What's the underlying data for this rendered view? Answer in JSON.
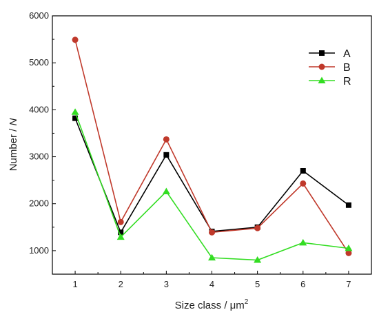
{
  "chart_data": {
    "type": "line",
    "x": [
      1,
      2,
      3,
      4,
      5,
      6,
      7
    ],
    "series": [
      {
        "name": "A",
        "color": "#000000",
        "marker": "square",
        "values": [
          3820,
          1390,
          3040,
          1410,
          1500,
          2700,
          1970
        ]
      },
      {
        "name": "B",
        "color": "#c0392b",
        "marker": "circle",
        "values": [
          5490,
          1610,
          3370,
          1390,
          1480,
          2430,
          950
        ]
      },
      {
        "name": "R",
        "color": "#33dd22",
        "marker": "triangle",
        "values": [
          3950,
          1290,
          2260,
          850,
          800,
          1170,
          1050
        ]
      }
    ],
    "xlim": [
      0.5,
      7.5
    ],
    "ylim": [
      500,
      6000
    ],
    "xticks": [
      1,
      2,
      3,
      4,
      5,
      6,
      7
    ],
    "yticks": [
      1000,
      2000,
      3000,
      4000,
      5000,
      6000
    ],
    "xlabel_main": "Size class / ",
    "xlabel_unit": "μm",
    "xlabel_sup": "2",
    "ylabel_main": "Number / ",
    "ylabel_var": "N",
    "legend_position": "top-right",
    "grid": false
  }
}
